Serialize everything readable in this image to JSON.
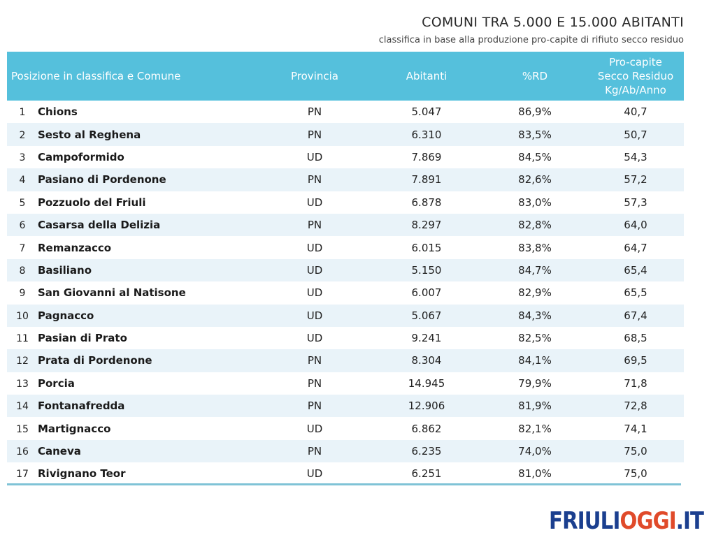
{
  "header": {
    "title": "COMUNI TRA 5.000 E 15.000 ABITANTI",
    "subtitle": "classifica in base alla produzione pro-capite di rifiuto secco residuo"
  },
  "table": {
    "columns": {
      "comune": "Posizione in classifica e Comune",
      "provincia": "Provincia",
      "abitanti": "Abitanti",
      "rd": "%RD",
      "procapite_1": "Pro-capite",
      "procapite_2": "Secco Residuo",
      "procapite_3": "Kg/Ab/Anno"
    },
    "rows": [
      {
        "pos": "1",
        "comune": "Chions",
        "provincia": "PN",
        "abitanti": "5.047",
        "rd": "86,9%",
        "procapite": "40,7"
      },
      {
        "pos": "2",
        "comune": "Sesto al Reghena",
        "provincia": "PN",
        "abitanti": "6.310",
        "rd": "83,5%",
        "procapite": "50,7"
      },
      {
        "pos": "3",
        "comune": "Campoformido",
        "provincia": "UD",
        "abitanti": "7.869",
        "rd": "84,5%",
        "procapite": "54,3"
      },
      {
        "pos": "4",
        "comune": "Pasiano di Pordenone",
        "provincia": "PN",
        "abitanti": "7.891",
        "rd": "82,6%",
        "procapite": "57,2"
      },
      {
        "pos": "5",
        "comune": "Pozzuolo del Friuli",
        "provincia": "UD",
        "abitanti": "6.878",
        "rd": "83,0%",
        "procapite": "57,3"
      },
      {
        "pos": "6",
        "comune": "Casarsa della Delizia",
        "provincia": "PN",
        "abitanti": "8.297",
        "rd": "82,8%",
        "procapite": "64,0"
      },
      {
        "pos": "7",
        "comune": "Remanzacco",
        "provincia": "UD",
        "abitanti": "6.015",
        "rd": "83,8%",
        "procapite": "64,7"
      },
      {
        "pos": "8",
        "comune": "Basiliano",
        "provincia": "UD",
        "abitanti": "5.150",
        "rd": "84,7%",
        "procapite": "65,4"
      },
      {
        "pos": "9",
        "comune": "San Giovanni al Natisone",
        "provincia": "UD",
        "abitanti": "6.007",
        "rd": "82,9%",
        "procapite": "65,5"
      },
      {
        "pos": "10",
        "comune": "Pagnacco",
        "provincia": "UD",
        "abitanti": "5.067",
        "rd": "84,3%",
        "procapite": "67,4"
      },
      {
        "pos": "11",
        "comune": "Pasian di Prato",
        "provincia": "UD",
        "abitanti": "9.241",
        "rd": "82,5%",
        "procapite": "68,5"
      },
      {
        "pos": "12",
        "comune": "Prata di Pordenone",
        "provincia": "PN",
        "abitanti": "8.304",
        "rd": "84,1%",
        "procapite": "69,5"
      },
      {
        "pos": "13",
        "comune": "Porcia",
        "provincia": "PN",
        "abitanti": "14.945",
        "rd": "79,9%",
        "procapite": "71,8"
      },
      {
        "pos": "14",
        "comune": "Fontanafredda",
        "provincia": "PN",
        "abitanti": "12.906",
        "rd": "81,9%",
        "procapite": "72,8"
      },
      {
        "pos": "15",
        "comune": "Martignacco",
        "provincia": "UD",
        "abitanti": "6.862",
        "rd": "82,1%",
        "procapite": "74,1"
      },
      {
        "pos": "16",
        "comune": "Caneva",
        "provincia": "PN",
        "abitanti": "6.235",
        "rd": "74,0%",
        "procapite": "75,0"
      },
      {
        "pos": "17",
        "comune": "Rivignano Teor",
        "provincia": "UD",
        "abitanti": "6.251",
        "rd": "81,0%",
        "procapite": "75,0"
      }
    ]
  },
  "logo": {
    "part1": "FRIULI",
    "part2": "OGGI",
    "part3": ".IT"
  }
}
